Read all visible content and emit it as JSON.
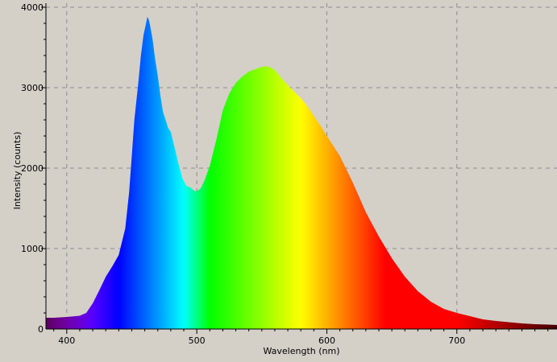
{
  "chart_data": {
    "type": "area",
    "xlabel": "Wavelength (nm)",
    "ylabel": "Intensity (counts)",
    "xlim": [
      384,
      777
    ],
    "ylim": [
      0,
      4050
    ],
    "x_ticks": [
      400,
      500,
      600,
      700
    ],
    "y_ticks": [
      0,
      1000,
      2000,
      3000,
      4000
    ],
    "x_tick_labels": [
      "400",
      "500",
      "600",
      "700"
    ],
    "y_tick_labels": [
      "0",
      "1000",
      "2000",
      "3000",
      "4000"
    ],
    "grid": true,
    "fill": "visible-spectrum",
    "background": "#d4d0c8",
    "x": [
      384,
      390,
      400,
      410,
      415,
      420,
      425,
      430,
      435,
      440,
      445,
      448,
      450,
      452,
      455,
      457,
      459,
      461,
      462,
      463,
      464,
      466,
      468,
      470,
      472,
      474,
      476,
      478,
      480,
      483,
      486,
      489,
      492,
      495,
      498,
      500,
      503,
      506,
      510,
      515,
      520,
      525,
      530,
      535,
      540,
      545,
      550,
      555,
      560,
      565,
      570,
      575,
      580,
      585,
      590,
      595,
      600,
      610,
      620,
      630,
      640,
      650,
      660,
      670,
      680,
      690,
      700,
      710,
      720,
      730,
      740,
      750,
      760,
      770,
      777
    ],
    "y": [
      140,
      140,
      150,
      165,
      200,
      320,
      480,
      650,
      780,
      920,
      1250,
      1700,
      2150,
      2600,
      3050,
      3400,
      3650,
      3800,
      3880,
      3850,
      3780,
      3600,
      3350,
      3150,
      2900,
      2700,
      2600,
      2500,
      2450,
      2250,
      2050,
      1870,
      1780,
      1760,
      1720,
      1710,
      1750,
      1850,
      2030,
      2350,
      2720,
      2930,
      3060,
      3140,
      3200,
      3230,
      3260,
      3265,
      3220,
      3120,
      3030,
      2950,
      2870,
      2770,
      2650,
      2530,
      2400,
      2150,
      1820,
      1450,
      1150,
      880,
      650,
      470,
      340,
      250,
      200,
      160,
      120,
      100,
      85,
      70,
      60,
      55,
      50
    ]
  }
}
